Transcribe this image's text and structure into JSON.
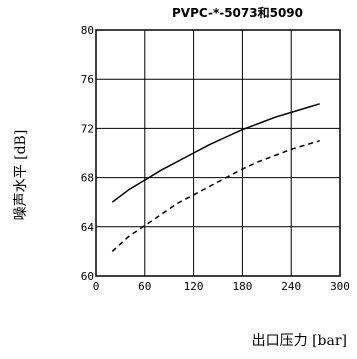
{
  "chart_data": {
    "type": "line",
    "title": "PVPC-*-5073和5090",
    "xlabel": "出口压力 [bar]",
    "ylabel": "噪声水平 [dB]",
    "xlim": [
      0,
      300
    ],
    "ylim": [
      60,
      80
    ],
    "x_ticks": [
      0,
      60,
      120,
      180,
      240,
      300
    ],
    "y_ticks": [
      60,
      64,
      68,
      72,
      76,
      80
    ],
    "grid": true,
    "series": [
      {
        "style": "solid",
        "x": [
          20,
          40,
          60,
          80,
          100,
          120,
          140,
          160,
          180,
          200,
          220,
          240,
          260,
          275
        ],
        "y": [
          66.0,
          67.0,
          67.8,
          68.6,
          69.3,
          70.0,
          70.7,
          71.3,
          71.9,
          72.4,
          72.9,
          73.3,
          73.7,
          74.0
        ]
      },
      {
        "style": "dashed",
        "x": [
          20,
          40,
          60,
          80,
          100,
          120,
          140,
          160,
          180,
          200,
          220,
          240,
          260,
          275
        ],
        "y": [
          62.0,
          63.2,
          64.1,
          65.0,
          65.9,
          66.6,
          67.3,
          68.0,
          68.7,
          69.3,
          69.8,
          70.3,
          70.7,
          71.0
        ]
      }
    ]
  }
}
